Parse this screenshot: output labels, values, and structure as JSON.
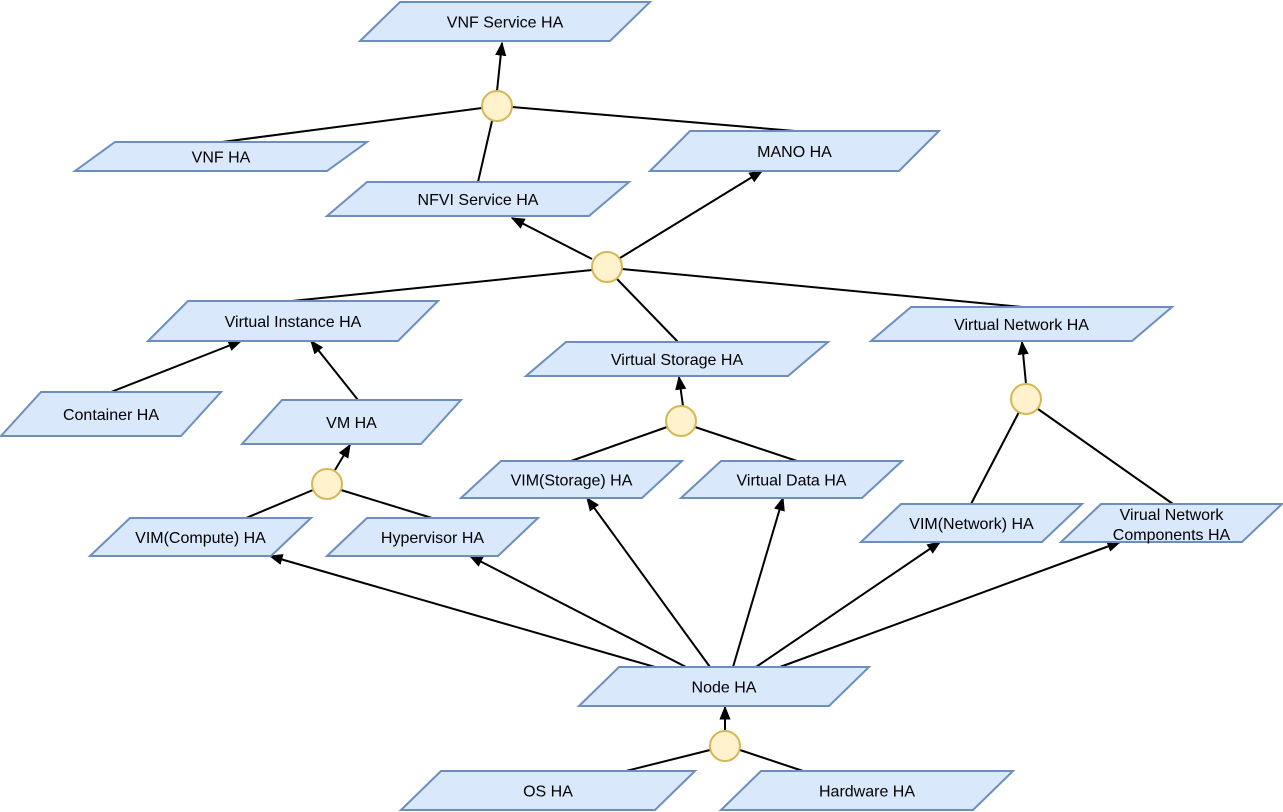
{
  "colors": {
    "node_fill": "#dae8fc",
    "node_stroke": "#6c8ebf",
    "junction_fill": "#fff2cc",
    "junction_stroke": "#d6b656",
    "edge": "#000000"
  },
  "nodes": {
    "vnf_service": "VNF Service HA",
    "vnf": "VNF HA",
    "nfvi_service": "NFVI Service HA",
    "mano": "MANO HA",
    "virtual_instance": "Virtual Instance HA",
    "virtual_storage": "Virtual Storage HA",
    "virtual_network": "Virtual Network HA",
    "container": "Container HA",
    "vm": "VM HA",
    "vim_storage": "VIM(Storage) HA",
    "virtual_data": "Virtual Data HA",
    "vim_compute": "VIM(Compute) HA",
    "hypervisor": "Hypervisor HA",
    "vim_network": "VIM(Network) HA",
    "virtual_network_components": [
      "Virual Network",
      "Components HA"
    ],
    "node": "Node HA",
    "os": "OS HA",
    "hardware": "Hardware HA"
  }
}
